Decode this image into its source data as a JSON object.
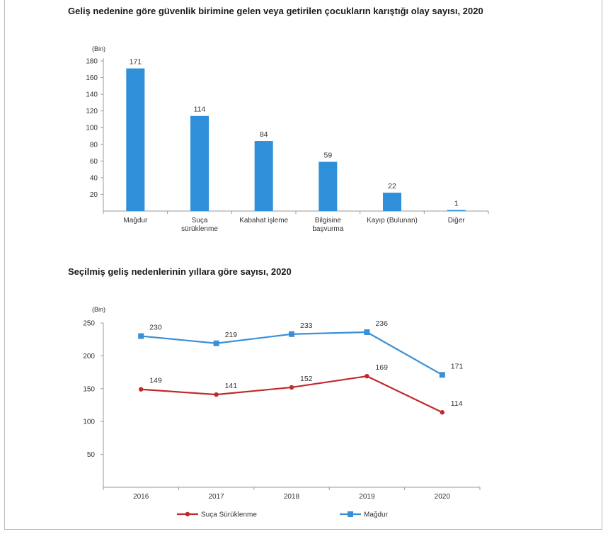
{
  "titles": {
    "chart1": "Geliş nedenine göre güvenlik birimine gelen veya getirilen çocukların karıştığı olay sayısı, 2020",
    "chart2": "Seçilmiş geliş nedenlerinin yıllara göre sayısı, 2020"
  },
  "chart_data": [
    {
      "type": "bar",
      "title": "Geliş nedenine göre güvenlik birimine gelen veya getirilen çocukların karıştığı olay sayısı, 2020",
      "unit": "(Bin)",
      "categories": [
        [
          "Mağdur"
        ],
        [
          "Suça",
          "sürüklenme"
        ],
        [
          "Kabahat işleme"
        ],
        [
          "Bilgisine",
          "başvurma"
        ],
        [
          "Kayıp (Bulunan)"
        ],
        [
          "Diğer"
        ]
      ],
      "values": [
        171,
        114,
        84,
        59,
        22,
        1
      ],
      "yticks": [
        20,
        40,
        60,
        80,
        100,
        120,
        140,
        160,
        180
      ],
      "ylim": [
        0,
        180
      ],
      "color": "#2f8fd8",
      "grid": false
    },
    {
      "type": "line",
      "title": "Seçilmiş geliş nedenlerinin yıllara göre sayısı, 2020",
      "unit": "(Bin)",
      "x": [
        "2016",
        "2017",
        "2018",
        "2019",
        "2020"
      ],
      "yticks": [
        50,
        100,
        150,
        200,
        250
      ],
      "ylim": [
        0,
        250
      ],
      "grid": false,
      "legend_position": "bottom",
      "series": [
        {
          "name": "Mağdur",
          "values": [
            230,
            219,
            233,
            236,
            171
          ],
          "color": "#3b8fd6",
          "marker": "square"
        },
        {
          "name": "Suça Sürüklenme",
          "values": [
            149,
            141,
            152,
            169,
            114
          ],
          "color": "#c0282d",
          "marker": "circle"
        }
      ]
    }
  ]
}
